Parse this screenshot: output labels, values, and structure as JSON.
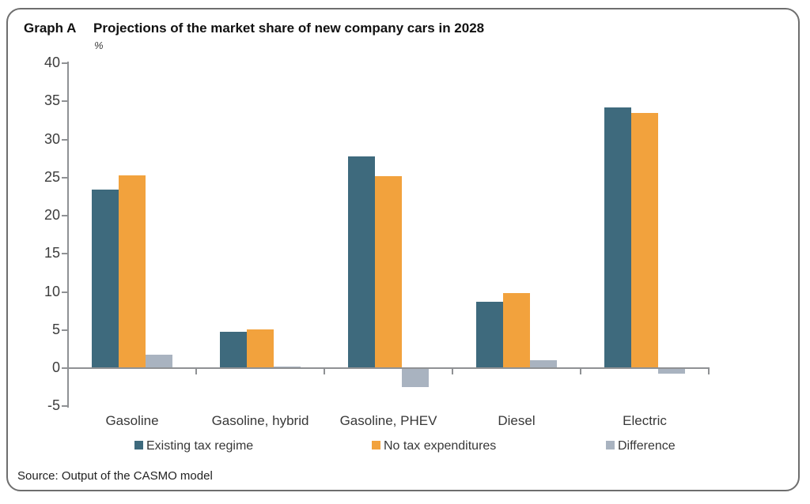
{
  "header": {
    "label": "Graph A",
    "title": "Projections of the market share of new company cars in 2028",
    "unit": "%"
  },
  "source": "Source: Output of the CASMO model",
  "chart_data": {
    "type": "bar",
    "title": "Projections of the market share of new company cars in 2028",
    "xlabel": "",
    "ylabel": "%",
    "ylim": [
      -5,
      40
    ],
    "ytick_step": 5,
    "yticks": [
      40,
      35,
      30,
      25,
      20,
      15,
      10,
      5,
      0,
      -5
    ],
    "grid": false,
    "legend_position": "bottom",
    "categories": [
      "Gasoline",
      "Gasoline, hybrid",
      "Gasoline, PHEV",
      "Diesel",
      "Electric"
    ],
    "series": [
      {
        "name": "Existing tax regime",
        "color": "#3E6A7D",
        "values": [
          23.4,
          4.8,
          27.8,
          8.7,
          34.2
        ]
      },
      {
        "name": "No tax expenditures",
        "color": "#F2A23D",
        "values": [
          25.3,
          5.1,
          25.2,
          9.8,
          33.5
        ]
      },
      {
        "name": "Difference",
        "color": "#A9B3C0",
        "values": [
          1.8,
          0.2,
          -2.5,
          1.0,
          -0.7
        ]
      }
    ]
  }
}
